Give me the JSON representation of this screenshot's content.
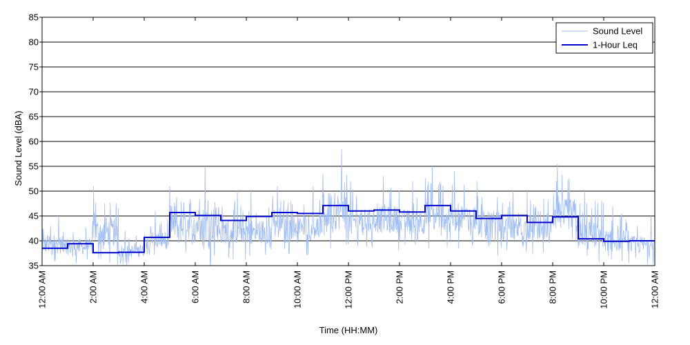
{
  "chart_data": {
    "type": "line",
    "title": "",
    "xlabel": "Time (HH:MM)",
    "ylabel": "Sound Level (dBA)",
    "ylim": [
      35,
      85
    ],
    "yticks": [
      35,
      40,
      45,
      50,
      55,
      60,
      65,
      70,
      75,
      80,
      85
    ],
    "xlim": [
      0,
      24
    ],
    "xticks": [
      0,
      2,
      4,
      6,
      8,
      10,
      12,
      14,
      16,
      18,
      20,
      22,
      24
    ],
    "xtick_labels": [
      "12:00 AM",
      "2:00 AM",
      "4:00 AM",
      "6:00 AM",
      "8:00 AM",
      "10:00 AM",
      "12:00 PM",
      "2:00 PM",
      "4:00 PM",
      "6:00 PM",
      "8:00 PM",
      "10:00 PM",
      "12:00 AM"
    ],
    "grid": "horizontal",
    "legend_position": "top-right",
    "series": [
      {
        "name": "Sound Level",
        "color": "#9fbcf2",
        "kind": "raw-fluctuating",
        "hourly_range": [
          [
            35,
            45
          ],
          [
            35,
            44
          ],
          [
            35,
            51
          ],
          [
            35,
            42
          ],
          [
            36,
            46
          ],
          [
            37,
            51
          ],
          [
            35,
            55
          ],
          [
            36,
            50
          ],
          [
            36,
            50
          ],
          [
            37,
            51
          ],
          [
            37,
            51
          ],
          [
            37,
            58.5
          ],
          [
            38,
            52
          ],
          [
            38,
            53
          ],
          [
            38,
            52
          ],
          [
            38,
            55
          ],
          [
            38,
            54
          ],
          [
            37,
            52
          ],
          [
            37,
            50
          ],
          [
            37,
            50
          ],
          [
            38,
            55.5
          ],
          [
            35,
            50
          ],
          [
            35,
            47
          ],
          [
            35,
            45
          ]
        ]
      },
      {
        "name": "1-Hour Leq",
        "color": "#0000cc",
        "kind": "step",
        "x": [
          0,
          1,
          2,
          3,
          4,
          5,
          6,
          7,
          8,
          9,
          10,
          11,
          12,
          13,
          14,
          15,
          16,
          17,
          18,
          19,
          20,
          21,
          22,
          23
        ],
        "values": [
          38.5,
          39.4,
          37.6,
          37.7,
          40.7,
          45.7,
          45.1,
          44.1,
          44.9,
          45.7,
          45.5,
          47.1,
          46.0,
          46.2,
          45.8,
          47.1,
          46.0,
          44.5,
          45.1,
          43.7,
          44.8,
          40.4,
          39.9,
          40.0
        ]
      }
    ]
  }
}
